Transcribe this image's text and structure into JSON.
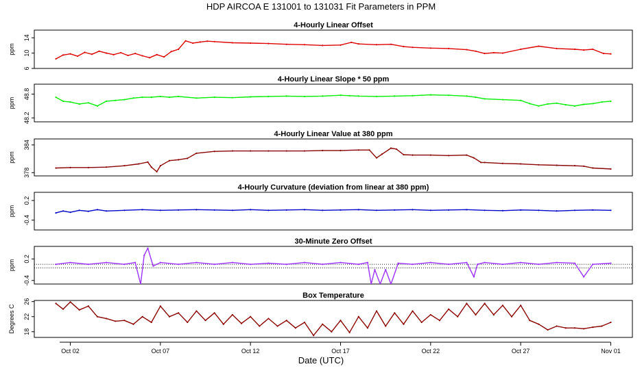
{
  "header": {
    "title": "HDP   AIRCOA E   131001 to 131031   Fit Parameters in PPM"
  },
  "x_axis": {
    "label": "Date (UTC)",
    "ticks": [
      {
        "day": 2,
        "label": "Oct 02"
      },
      {
        "day": 7,
        "label": "Oct 07"
      },
      {
        "day": 12,
        "label": "Oct 12"
      },
      {
        "day": 17,
        "label": "Oct 17"
      },
      {
        "day": 22,
        "label": "Oct 22"
      },
      {
        "day": 27,
        "label": "Oct 27"
      },
      {
        "day": 32,
        "label": "Nov 01"
      }
    ]
  },
  "chart_data": [
    {
      "type": "line",
      "title": "4-Hourly Linear Offset",
      "ylabel": "ppm",
      "color": "#e00000",
      "ylim": [
        6,
        16
      ],
      "yticks": [
        6,
        10,
        14
      ],
      "x": [
        1.2,
        1.6,
        2.0,
        2.4,
        2.8,
        3.2,
        3.6,
        4.0,
        4.4,
        4.8,
        5.2,
        5.6,
        6.0,
        6.4,
        6.8,
        7.2,
        7.6,
        8.0,
        8.4,
        8.8,
        9.2,
        9.6,
        10.0,
        11.0,
        12.0,
        13.0,
        14.0,
        15.0,
        16.0,
        17.0,
        17.6,
        18.0,
        19.0,
        19.8,
        20.5,
        21.0,
        22.0,
        23.0,
        24.0,
        24.5,
        25.0,
        25.5,
        26.0,
        27.0,
        28.0,
        29.0,
        30.0,
        30.5,
        31.0,
        31.6,
        32.0
      ],
      "values": [
        8.5,
        9.5,
        9.8,
        9.2,
        10.2,
        9.7,
        10.5,
        10.0,
        9.6,
        10.1,
        9.4,
        9.9,
        9.3,
        8.8,
        9.6,
        9.0,
        10.4,
        11.0,
        13.2,
        12.6,
        12.9,
        13.1,
        13.0,
        12.7,
        12.6,
        12.5,
        12.3,
        12.2,
        12.0,
        12.1,
        12.8,
        12.4,
        12.2,
        12.3,
        11.7,
        11.5,
        11.3,
        11.2,
        10.9,
        10.5,
        9.9,
        10.1,
        10.0,
        11.0,
        11.8,
        11.2,
        11.0,
        10.8,
        11.0,
        9.9,
        9.8
      ]
    },
    {
      "type": "line",
      "title": "4-Hourly Linear Slope * 50 ppm",
      "ylabel": "ppm",
      "color": "#00ee00",
      "ylim": [
        48.1,
        49.05
      ],
      "yticks": [
        48.2,
        48.8
      ],
      "x": [
        1.2,
        1.6,
        2.0,
        2.5,
        3.0,
        3.5,
        4.0,
        4.5,
        5.0,
        5.5,
        6.0,
        6.5,
        7.0,
        7.5,
        8.0,
        9.0,
        10.0,
        11.0,
        12.0,
        13.0,
        14.0,
        15.0,
        16.0,
        17.0,
        17.5,
        18.0,
        19.0,
        20.0,
        21.0,
        22.0,
        23.0,
        24.0,
        24.5,
        25.0,
        26.0,
        27.0,
        27.5,
        28.0,
        28.5,
        29.0,
        29.5,
        30.0,
        30.5,
        31.0,
        31.5,
        32.0
      ],
      "values": [
        48.72,
        48.62,
        48.6,
        48.55,
        48.58,
        48.5,
        48.62,
        48.64,
        48.66,
        48.7,
        48.72,
        48.72,
        48.74,
        48.72,
        48.74,
        48.7,
        48.72,
        48.71,
        48.73,
        48.74,
        48.75,
        48.74,
        48.75,
        48.77,
        48.76,
        48.75,
        48.74,
        48.75,
        48.76,
        48.78,
        48.77,
        48.75,
        48.72,
        48.68,
        48.66,
        48.64,
        48.56,
        48.5,
        48.55,
        48.57,
        48.53,
        48.5,
        48.54,
        48.56,
        48.6,
        48.62
      ]
    },
    {
      "type": "line",
      "title": "4-Hourly Linear Value at 380 ppm",
      "ylabel": "ppm",
      "color": "#8b0000",
      "ylim": [
        377.3,
        385.3
      ],
      "yticks": [
        378,
        384
      ],
      "x": [
        1.2,
        2.0,
        3.0,
        4.0,
        5.0,
        5.8,
        6.3,
        6.5,
        6.8,
        7.0,
        7.5,
        8.0,
        8.5,
        9.0,
        10.0,
        11.0,
        12.0,
        13.0,
        14.0,
        15.0,
        16.0,
        17.0,
        18.0,
        18.6,
        19.0,
        19.3,
        19.8,
        20.1,
        20.5,
        21.0,
        22.0,
        23.0,
        24.0,
        24.4,
        24.8,
        25.0,
        26.0,
        27.0,
        28.0,
        29.0,
        30.0,
        30.5,
        31.0,
        32.0
      ],
      "values": [
        379.0,
        379.1,
        379.1,
        379.2,
        379.5,
        379.9,
        380.3,
        379.2,
        378.2,
        379.5,
        380.6,
        380.8,
        381.1,
        382.2,
        382.6,
        382.7,
        382.7,
        382.7,
        382.7,
        382.7,
        382.8,
        382.8,
        382.9,
        382.9,
        381.2,
        382.0,
        383.3,
        383.1,
        381.9,
        381.8,
        381.8,
        381.7,
        381.8,
        381.2,
        380.2,
        380.2,
        380.0,
        379.9,
        379.7,
        379.6,
        379.5,
        379.4,
        379.0,
        378.8
      ]
    },
    {
      "type": "line",
      "title": "4-Hourly Curvature (deviation from linear at 380 ppm)",
      "ylabel": "ppm",
      "color": "#0000cc",
      "ylim": [
        -0.7,
        0.45
      ],
      "yticks": [
        -0.4,
        0.2
      ],
      "x": [
        1.2,
        1.6,
        2.0,
        2.5,
        3.0,
        3.5,
        4.0,
        5.0,
        6.0,
        7.0,
        8.0,
        9.0,
        10.0,
        11.0,
        12.0,
        13.0,
        14.0,
        15.0,
        16.0,
        17.0,
        18.0,
        19.0,
        20.0,
        21.0,
        22.0,
        23.0,
        24.0,
        25.0,
        26.0,
        27.0,
        28.0,
        29.0,
        30.0,
        31.0,
        32.0
      ],
      "values": [
        -0.18,
        -0.12,
        -0.16,
        -0.1,
        -0.13,
        -0.08,
        -0.12,
        -0.1,
        -0.08,
        -0.1,
        -0.09,
        -0.08,
        -0.09,
        -0.1,
        -0.08,
        -0.1,
        -0.09,
        -0.08,
        -0.1,
        -0.09,
        -0.08,
        -0.1,
        -0.09,
        -0.08,
        -0.1,
        -0.09,
        -0.08,
        -0.1,
        -0.11,
        -0.09,
        -0.1,
        -0.12,
        -0.1,
        -0.09,
        -0.1
      ]
    },
    {
      "type": "line",
      "title": "30-Minute Zero Offset",
      "ylabel": "ppm",
      "color": "#9b30ff",
      "ylim": [
        -0.5,
        0.55
      ],
      "yticks": [
        -0.4,
        0.2
      ],
      "reference_lines": [
        0.05,
        -0.05
      ],
      "x": [
        1.2,
        2.0,
        3.0,
        4.0,
        5.0,
        5.6,
        5.9,
        6.1,
        6.3,
        6.6,
        7.0,
        8.0,
        9.0,
        10.0,
        11.0,
        12.0,
        13.0,
        14.0,
        15.0,
        16.0,
        17.0,
        18.0,
        18.5,
        18.7,
        18.9,
        19.2,
        19.5,
        19.8,
        20.2,
        21.0,
        22.0,
        23.0,
        24.0,
        24.4,
        24.6,
        25.0,
        26.0,
        27.0,
        28.0,
        29.0,
        30.0,
        30.5,
        31.0,
        32.0
      ],
      "values": [
        0.05,
        0.1,
        0.05,
        0.1,
        0.05,
        0.1,
        -0.5,
        0.3,
        0.5,
        0.0,
        0.1,
        0.05,
        0.1,
        0.05,
        0.1,
        0.05,
        0.08,
        0.05,
        0.1,
        0.05,
        0.1,
        0.05,
        0.1,
        -0.5,
        -0.1,
        -0.5,
        -0.1,
        -0.5,
        0.08,
        0.05,
        0.1,
        0.05,
        0.1,
        -0.3,
        0.05,
        0.1,
        0.05,
        0.1,
        0.05,
        0.1,
        0.08,
        -0.3,
        0.05,
        0.08
      ]
    },
    {
      "type": "line",
      "title": "Box Temperature",
      "ylabel": "Degrees C",
      "color": "#8b0000",
      "ylim": [
        16.5,
        26.3
      ],
      "yticks": [
        18,
        22,
        26
      ],
      "x": [
        1.2,
        1.6,
        2.0,
        2.5,
        3.0,
        3.5,
        4.0,
        4.5,
        5.0,
        5.5,
        6.0,
        6.5,
        7.0,
        7.5,
        8.0,
        8.5,
        9.0,
        9.5,
        10.0,
        10.5,
        11.0,
        11.5,
        12.0,
        12.5,
        13.0,
        13.5,
        14.0,
        14.5,
        15.0,
        15.5,
        16.0,
        16.5,
        17.0,
        17.5,
        18.0,
        18.5,
        19.0,
        19.5,
        20.0,
        20.5,
        21.0,
        21.5,
        22.0,
        22.5,
        23.0,
        23.5,
        24.0,
        24.5,
        25.0,
        25.5,
        26.0,
        26.5,
        27.0,
        27.5,
        28.0,
        28.5,
        29.0,
        29.5,
        30.0,
        30.5,
        31.0,
        31.5,
        32.0
      ],
      "values": [
        25.5,
        24.0,
        25.9,
        23.8,
        24.8,
        22.0,
        21.5,
        20.8,
        21.0,
        20.0,
        22.0,
        20.5,
        24.8,
        22.0,
        23.0,
        20.5,
        23.5,
        21.0,
        23.0,
        20.0,
        22.5,
        20.2,
        22.0,
        19.5,
        21.5,
        19.5,
        21.0,
        19.0,
        20.5,
        17.0,
        20.0,
        18.0,
        21.0,
        17.8,
        22.0,
        19.0,
        23.5,
        19.5,
        23.0,
        20.0,
        23.5,
        20.5,
        22.5,
        21.0,
        24.0,
        22.0,
        25.5,
        22.5,
        25.5,
        22.5,
        25.0,
        22.0,
        25.0,
        21.0,
        20.0,
        18.5,
        19.5,
        19.0,
        19.0,
        18.8,
        19.2,
        19.5,
        20.5
      ]
    }
  ]
}
